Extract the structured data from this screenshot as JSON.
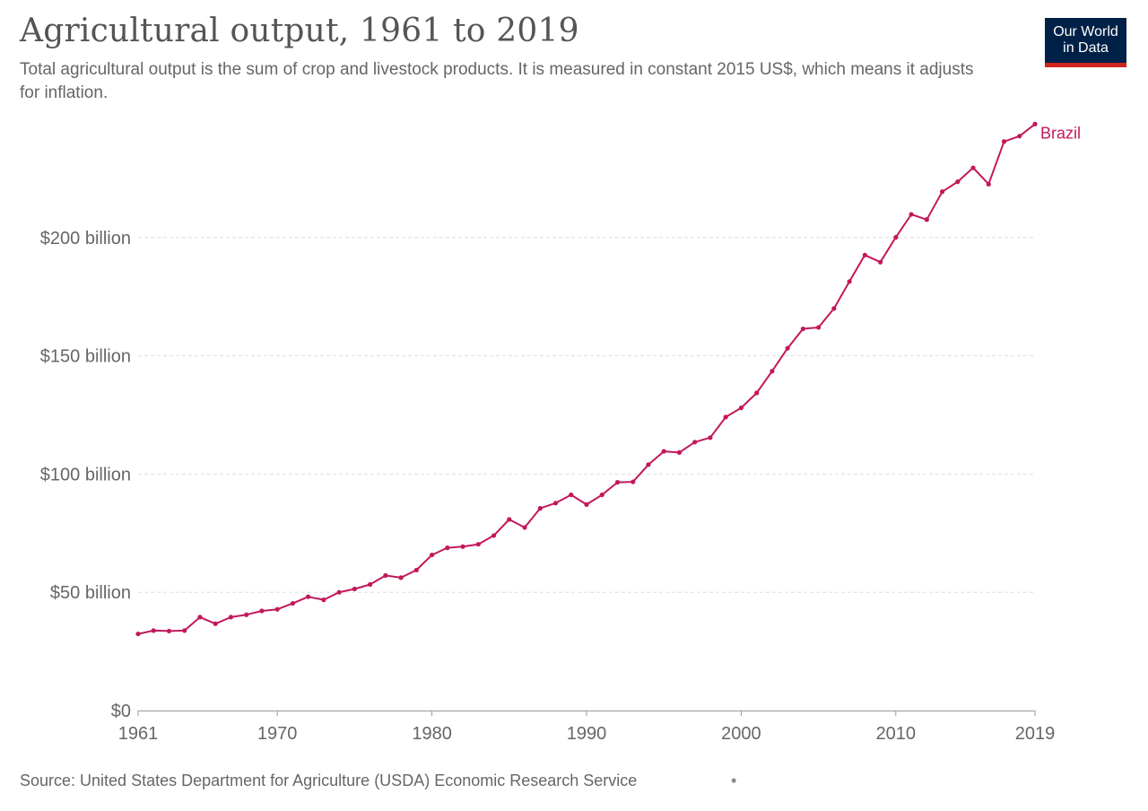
{
  "header": {
    "title": "Agricultural output, 1961 to 2019",
    "subtitle": "Total agricultural output is the sum of crop and livestock products. It is measured in constant 2015 US$, which means it adjusts for inflation."
  },
  "logo": {
    "line1": "Our World",
    "line2": "in Data"
  },
  "footer": {
    "source": "Source: United States Department for Agriculture (USDA) Economic Research Service",
    "dot": "•"
  },
  "colors": {
    "series": "#c2185b",
    "grid": "#dddddd",
    "axis": "#999999",
    "logo_bg": "#002147",
    "logo_accent": "#ce261e"
  },
  "chart_data": {
    "type": "line",
    "title": "Agricultural output, 1961 to 2019",
    "xlabel": "",
    "ylabel": "",
    "xlim": [
      1961,
      2019
    ],
    "ylim": [
      0,
      250
    ],
    "y_ticks": [
      {
        "value": 0,
        "label": "$0"
      },
      {
        "value": 50,
        "label": "$50 billion"
      },
      {
        "value": 100,
        "label": "$100 billion"
      },
      {
        "value": 150,
        "label": "$150 billion"
      },
      {
        "value": 200,
        "label": "$200 billion"
      }
    ],
    "x_ticks": [
      {
        "value": 1961,
        "label": "1961"
      },
      {
        "value": 1970,
        "label": "1970"
      },
      {
        "value": 1980,
        "label": "1980"
      },
      {
        "value": 1990,
        "label": "1990"
      },
      {
        "value": 2000,
        "label": "2000"
      },
      {
        "value": 2010,
        "label": "2010"
      },
      {
        "value": 2019,
        "label": "2019"
      }
    ],
    "grid": true,
    "series": [
      {
        "name": "Brazil",
        "label": "Brazil",
        "x": [
          1961,
          1962,
          1963,
          1964,
          1965,
          1966,
          1967,
          1968,
          1969,
          1970,
          1971,
          1972,
          1973,
          1974,
          1975,
          1976,
          1977,
          1978,
          1979,
          1980,
          1981,
          1982,
          1983,
          1984,
          1985,
          1986,
          1987,
          1988,
          1989,
          1990,
          1991,
          1992,
          1993,
          1994,
          1995,
          1996,
          1997,
          1998,
          1999,
          2000,
          2001,
          2002,
          2003,
          2004,
          2005,
          2006,
          2007,
          2008,
          2009,
          2010,
          2011,
          2012,
          2013,
          2014,
          2015,
          2016,
          2017,
          2018,
          2019
        ],
        "values": [
          32.4,
          33.8,
          33.6,
          33.8,
          39.5,
          36.7,
          39.5,
          40.5,
          42.1,
          42.8,
          45.3,
          48.1,
          46.8,
          50.0,
          51.4,
          53.3,
          57.1,
          56.2,
          59.4,
          65.8,
          68.8,
          69.3,
          70.3,
          74.0,
          80.8,
          77.4,
          85.5,
          87.7,
          91.2,
          87.1,
          91.2,
          96.5,
          96.7,
          104.0,
          109.6,
          109.1,
          113.5,
          115.4,
          124.1,
          128.0,
          134.3,
          143.5,
          153.2,
          161.4,
          162.0,
          170.0,
          181.4,
          192.6,
          189.6,
          200.1,
          209.8,
          207.6,
          219.4,
          223.6,
          229.5,
          222.6,
          240.6,
          242.9,
          248.0
        ]
      }
    ]
  }
}
